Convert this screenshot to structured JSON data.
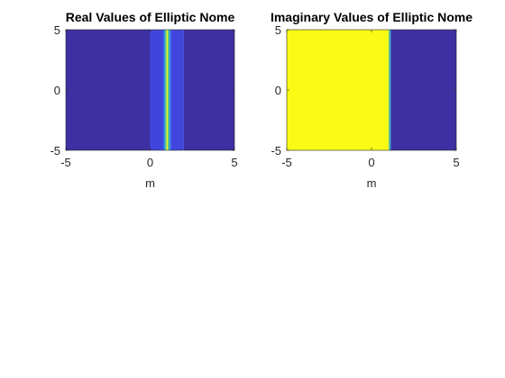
{
  "figure": {
    "background": "#ffffff"
  },
  "chart_data": [
    {
      "type": "heatmap",
      "title": "Real Values of Elliptic Nome",
      "xlabel": "m",
      "ylabel": "",
      "xlim": [
        -5,
        5
      ],
      "ylim": [
        -5,
        5
      ],
      "xticks": [
        -5,
        0,
        5
      ],
      "xtick_labels": [
        "-5",
        "0",
        "5"
      ],
      "yticks": [
        -5,
        0,
        5
      ],
      "ytick_labels": [
        "-5",
        "0",
        "5"
      ],
      "grid": false,
      "colormap": "parula",
      "bands": [
        {
          "x_from": -5.0,
          "x_to": 0.0,
          "color": "#3e2fa3"
        },
        {
          "x_from": 0.0,
          "x_to": 0.8,
          "color": "#4046dc"
        },
        {
          "x_from": 0.8,
          "x_to": 0.9,
          "color": "#2a8fe8"
        },
        {
          "x_from": 0.9,
          "x_to": 0.98,
          "color": "#5fcf6a"
        },
        {
          "x_from": 0.98,
          "x_to": 1.05,
          "color": "#f5f02a"
        },
        {
          "x_from": 1.05,
          "x_to": 1.12,
          "color": "#5fcf6a"
        },
        {
          "x_from": 1.12,
          "x_to": 1.22,
          "color": "#2a8fe8"
        },
        {
          "x_from": 1.22,
          "x_to": 2.0,
          "color": "#4046dc"
        },
        {
          "x_from": 2.0,
          "x_to": 5.0,
          "color": "#3e2fa3"
        }
      ]
    },
    {
      "type": "heatmap",
      "title": "Imaginary Values of Elliptic Nome",
      "xlabel": "m",
      "ylabel": "",
      "xlim": [
        -5,
        5
      ],
      "ylim": [
        -5,
        5
      ],
      "xticks": [
        -5,
        0,
        5
      ],
      "xtick_labels": [
        "-5",
        "0",
        "5"
      ],
      "yticks": [
        -5,
        0,
        5
      ],
      "ytick_labels": [
        "-5",
        "0",
        "5"
      ],
      "grid": false,
      "colormap": "parula",
      "bands": [
        {
          "x_from": -5.0,
          "x_to": 1.0,
          "color": "#f9fb14"
        },
        {
          "x_from": 1.0,
          "x_to": 1.07,
          "color": "#7dc46a"
        },
        {
          "x_from": 1.07,
          "x_to": 1.14,
          "color": "#2aa1c9"
        },
        {
          "x_from": 1.14,
          "x_to": 5.0,
          "color": "#3e2fa3"
        }
      ]
    }
  ]
}
